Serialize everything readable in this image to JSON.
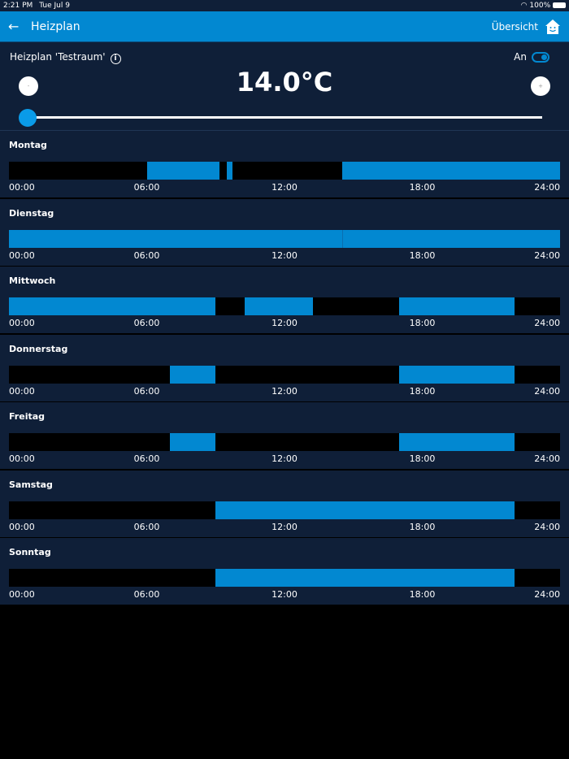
{
  "status": {
    "time": "2:21 PM",
    "date": "Tue Jul 9",
    "battery": "100%"
  },
  "header": {
    "back_icon": "arrow-left-icon",
    "title": "Heizplan",
    "overview_label": "Übersicht",
    "home_icon": "house-smiley-icon"
  },
  "control": {
    "plan_label": "Heizplan 'Testraum'",
    "info_icon": "i",
    "toggle_label": "An",
    "toggle_on": true,
    "temperature": "14.0°C",
    "minus_label": "-",
    "plus_label": "+",
    "slider_level": 0,
    "accent": "#0288d1"
  },
  "ticks": [
    "00:00",
    "06:00",
    "12:00",
    "18:00",
    "24:00"
  ],
  "days": [
    {
      "name": "Montag",
      "heating": [
        [
          6,
          9.17
        ],
        [
          9.5,
          9.75
        ],
        [
          14.5,
          24
        ]
      ]
    },
    {
      "name": "Dienstag",
      "heating": [
        [
          0,
          14.5
        ],
        [
          14.5,
          24
        ]
      ]
    },
    {
      "name": "Mittwoch",
      "heating": [
        [
          0,
          9
        ],
        [
          10.25,
          13.25
        ],
        [
          17,
          22
        ]
      ]
    },
    {
      "name": "Donnerstag",
      "heating": [
        [
          7,
          9
        ],
        [
          17,
          22
        ]
      ]
    },
    {
      "name": "Freitag",
      "heating": [
        [
          7,
          9
        ],
        [
          17,
          22
        ]
      ]
    },
    {
      "name": "Samstag",
      "heating": [
        [
          9,
          22
        ]
      ]
    },
    {
      "name": "Sonntag",
      "heating": [
        [
          9,
          22
        ]
      ]
    }
  ]
}
